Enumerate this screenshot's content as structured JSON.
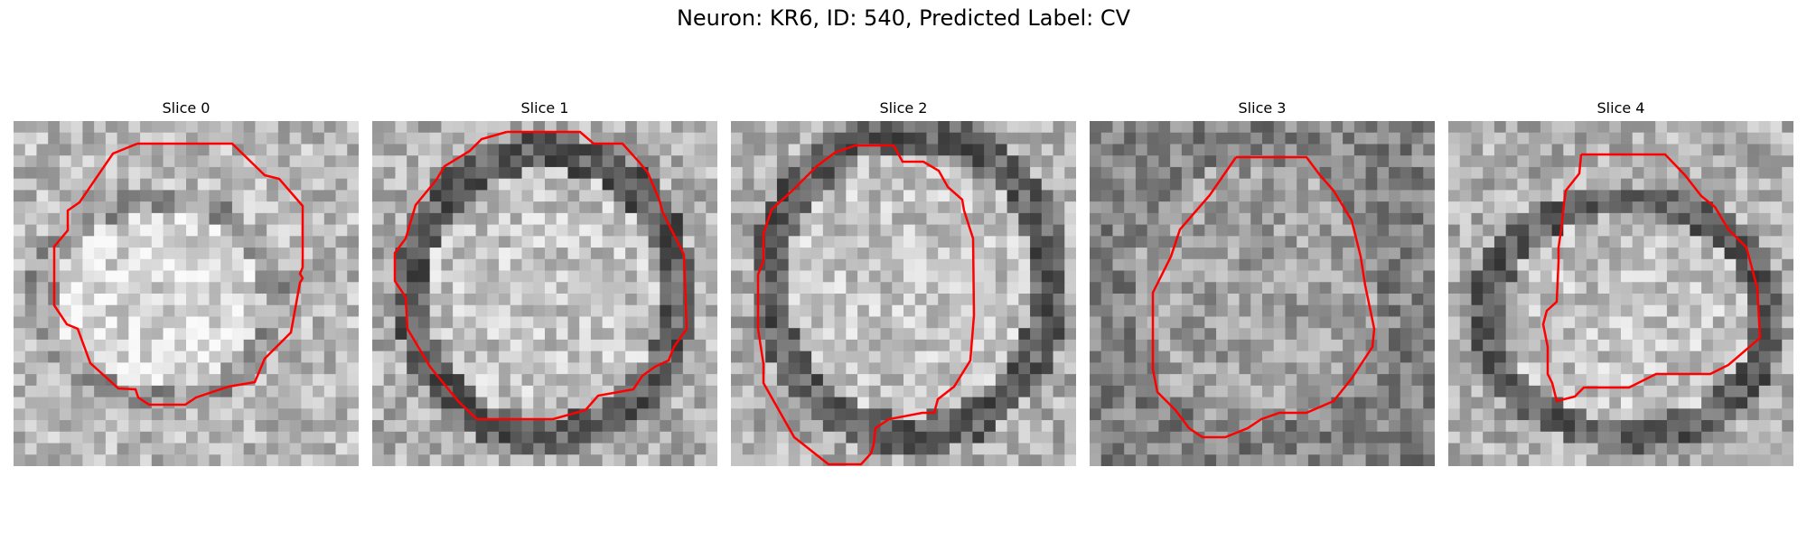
{
  "figure": {
    "title": "Neuron: KR6, ID: 540, Predicted Label: CV"
  },
  "colors": {
    "contour": "#ff0000",
    "background": "#ffffff"
  },
  "panels": [
    {
      "title": "Slice 0"
    },
    {
      "title": "Slice 1"
    },
    {
      "title": "Slice 2"
    },
    {
      "title": "Slice 3"
    },
    {
      "title": "Slice 4"
    }
  ]
}
